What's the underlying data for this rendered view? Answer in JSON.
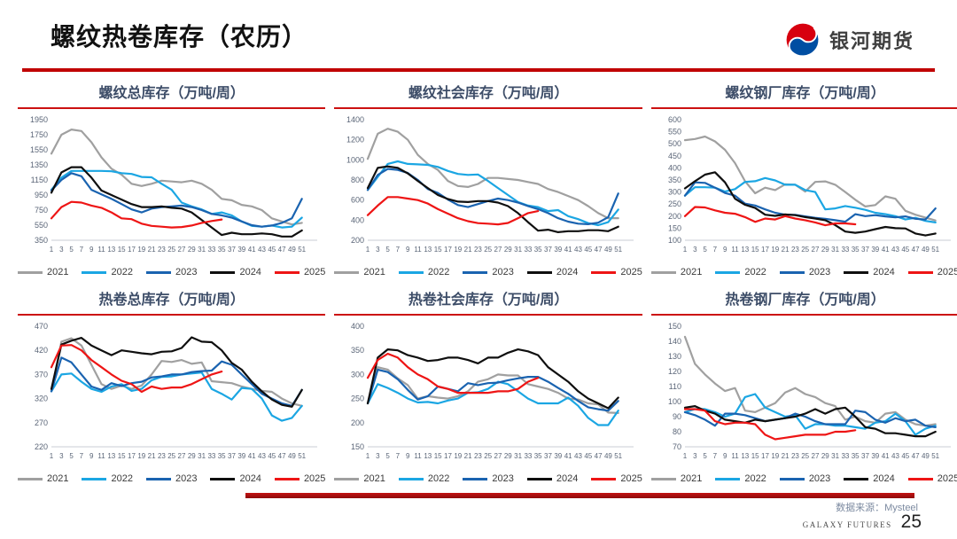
{
  "header": {
    "title": "螺纹热卷库存（农历）",
    "logo_text": "银河期货"
  },
  "footer": {
    "source": "数据来源：Mysteel",
    "brand": "GALAXY FUTURES",
    "page_number": "25"
  },
  "colors": {
    "2021": "#a0a0a0",
    "2022": "#1ba6e3",
    "2023": "#1a63b0",
    "2024": "#0f0f0f",
    "2025": "#ee1515",
    "accent_red": "#c00000",
    "title_text": "#3d4d68",
    "tick_text": "#5a6577",
    "axis_line": "#c9cdd4"
  },
  "legend_years": [
    "2021",
    "2022",
    "2023",
    "2024",
    "2025"
  ],
  "chart_data": [
    {
      "type": "line",
      "title": "螺纹总库存（万吨/周）",
      "x": [
        1,
        3,
        5,
        7,
        9,
        11,
        13,
        15,
        17,
        19,
        21,
        23,
        25,
        27,
        29,
        31,
        33,
        35,
        37,
        39,
        41,
        43,
        45,
        47,
        49,
        51
      ],
      "ylim": [
        350,
        1950
      ],
      "y_ticks": [
        350,
        550,
        750,
        950,
        1150,
        1350,
        1550,
        1750,
        1950
      ],
      "legend_position": "bottom",
      "series": [
        {
          "name": "2021",
          "values": [
            1500,
            1750,
            1820,
            1800,
            1650,
            1450,
            1300,
            1220,
            1100,
            1070,
            1100,
            1140,
            1130,
            1120,
            1140,
            1100,
            1020,
            900,
            880,
            820,
            800,
            750,
            640,
            600,
            560,
            580
          ]
        },
        {
          "name": "2022",
          "values": [
            1020,
            1180,
            1270,
            1270,
            1270,
            1270,
            1265,
            1240,
            1230,
            1190,
            1185,
            1100,
            1020,
            850,
            800,
            760,
            700,
            720,
            680,
            600,
            540,
            530,
            545,
            520,
            530,
            650
          ]
        },
        {
          "name": "2023",
          "values": [
            1010,
            1150,
            1240,
            1200,
            1020,
            960,
            900,
            830,
            760,
            720,
            770,
            790,
            800,
            810,
            790,
            750,
            700,
            680,
            650,
            600,
            550,
            530,
            545,
            580,
            640,
            900
          ]
        },
        {
          "name": "2024",
          "values": [
            980,
            1250,
            1320,
            1320,
            1180,
            1010,
            950,
            890,
            830,
            790,
            790,
            800,
            780,
            770,
            720,
            620,
            520,
            420,
            450,
            430,
            430,
            440,
            430,
            400,
            400,
            480
          ]
        },
        {
          "name": "2025",
          "values": [
            640,
            790,
            860,
            850,
            810,
            780,
            720,
            640,
            630,
            570,
            540,
            530,
            520,
            525,
            545,
            580,
            605,
            625
          ]
        }
      ]
    },
    {
      "type": "line",
      "title": "螺纹社会库存（万吨/周）",
      "x": [
        1,
        3,
        5,
        7,
        9,
        11,
        13,
        15,
        17,
        19,
        21,
        23,
        25,
        27,
        29,
        31,
        33,
        35,
        37,
        39,
        41,
        43,
        45,
        47,
        49,
        51
      ],
      "ylim": [
        200,
        1400
      ],
      "y_ticks": [
        200,
        400,
        600,
        800,
        1000,
        1200,
        1400
      ],
      "legend_position": "bottom",
      "series": [
        {
          "name": "2021",
          "values": [
            1010,
            1260,
            1310,
            1280,
            1200,
            1050,
            960,
            900,
            790,
            740,
            730,
            760,
            820,
            820,
            810,
            800,
            780,
            760,
            710,
            680,
            640,
            600,
            540,
            470,
            420,
            420
          ]
        },
        {
          "name": "2022",
          "values": [
            700,
            830,
            960,
            985,
            960,
            955,
            950,
            930,
            890,
            860,
            850,
            855,
            790,
            720,
            650,
            580,
            545,
            530,
            490,
            500,
            440,
            410,
            370,
            350,
            380,
            505
          ]
        },
        {
          "name": "2023",
          "values": [
            700,
            850,
            910,
            900,
            870,
            800,
            710,
            670,
            605,
            550,
            530,
            560,
            590,
            615,
            600,
            575,
            540,
            510,
            470,
            420,
            385,
            365,
            360,
            375,
            430,
            665
          ]
        },
        {
          "name": "2024",
          "values": [
            720,
            920,
            935,
            920,
            865,
            790,
            720,
            650,
            610,
            585,
            580,
            590,
            590,
            575,
            540,
            470,
            380,
            295,
            305,
            280,
            290,
            290,
            300,
            300,
            290,
            335
          ]
        },
        {
          "name": "2025",
          "values": [
            450,
            545,
            630,
            630,
            615,
            600,
            565,
            510,
            465,
            420,
            390,
            370,
            365,
            358,
            372,
            420,
            470,
            490
          ]
        }
      ]
    },
    {
      "type": "line",
      "title": "螺纹钢厂库存（万吨/周）",
      "x": [
        1,
        3,
        5,
        7,
        9,
        11,
        13,
        15,
        17,
        19,
        21,
        23,
        25,
        27,
        29,
        31,
        33,
        35,
        37,
        39,
        41,
        43,
        45,
        47,
        49,
        51
      ],
      "ylim": [
        100,
        600
      ],
      "y_ticks": [
        100,
        150,
        200,
        250,
        300,
        350,
        400,
        450,
        500,
        550,
        600
      ],
      "legend_position": "bottom",
      "series": [
        {
          "name": "2021",
          "values": [
            515,
            520,
            530,
            510,
            475,
            420,
            345,
            295,
            318,
            308,
            332,
            330,
            302,
            342,
            344,
            330,
            300,
            268,
            240,
            246,
            282,
            272,
            222,
            206,
            194,
            182
          ]
        },
        {
          "name": "2022",
          "values": [
            285,
            320,
            320,
            318,
            302,
            312,
            342,
            345,
            358,
            348,
            330,
            330,
            308,
            300,
            228,
            232,
            242,
            235,
            226,
            214,
            208,
            200,
            186,
            193,
            180,
            174
          ]
        },
        {
          "name": "2023",
          "values": [
            285,
            340,
            338,
            318,
            296,
            285,
            252,
            244,
            228,
            214,
            206,
            205,
            199,
            193,
            189,
            183,
            177,
            208,
            200,
            204,
            199,
            195,
            199,
            189,
            186,
            232
          ]
        },
        {
          "name": "2024",
          "values": [
            315,
            345,
            372,
            382,
            340,
            272,
            247,
            234,
            206,
            201,
            207,
            204,
            196,
            190,
            183,
            163,
            136,
            131,
            136,
            146,
            155,
            150,
            149,
            128,
            120,
            128
          ]
        },
        {
          "name": "2025",
          "values": [
            200,
            238,
            236,
            224,
            214,
            210,
            196,
            176,
            190,
            186,
            200,
            190,
            183,
            174,
            162,
            170,
            170,
            166
          ]
        }
      ]
    },
    {
      "type": "line",
      "title": "热卷总库存（万吨/周）",
      "x": [
        1,
        3,
        5,
        7,
        9,
        11,
        13,
        15,
        17,
        19,
        21,
        23,
        25,
        27,
        29,
        31,
        33,
        35,
        37,
        39,
        41,
        43,
        45,
        47,
        49,
        51
      ],
      "ylim": [
        220,
        470
      ],
      "y_ticks": [
        220,
        270,
        320,
        370,
        420,
        470
      ],
      "legend_position": "bottom",
      "series": [
        {
          "name": "2021",
          "values": [
            335,
            438,
            445,
            430,
            390,
            350,
            340,
            347,
            340,
            347,
            370,
            398,
            396,
            400,
            392,
            395,
            356,
            354,
            352,
            345,
            340,
            336,
            334,
            320,
            310,
            305
          ]
        },
        {
          "name": "2022",
          "values": [
            335,
            370,
            372,
            355,
            340,
            334,
            345,
            350,
            336,
            340,
            358,
            365,
            366,
            370,
            372,
            374,
            340,
            330,
            318,
            342,
            340,
            320,
            285,
            274,
            280,
            305
          ]
        },
        {
          "name": "2023",
          "values": [
            335,
            405,
            395,
            370,
            345,
            338,
            352,
            346,
            352,
            355,
            364,
            366,
            370,
            370,
            375,
            377,
            378,
            397,
            390,
            370,
            350,
            330,
            320,
            310,
            305,
            338
          ]
        },
        {
          "name": "2024",
          "values": [
            340,
            432,
            440,
            446,
            430,
            420,
            410,
            420,
            417,
            414,
            412,
            417,
            418,
            425,
            447,
            438,
            437,
            420,
            394,
            380,
            355,
            335,
            318,
            307,
            303,
            338
          ]
        },
        {
          "name": "2025",
          "values": [
            385,
            430,
            431,
            420,
            400,
            385,
            370,
            357,
            350,
            334,
            345,
            340,
            343,
            343,
            350,
            360,
            370,
            376
          ]
        }
      ]
    },
    {
      "type": "line",
      "title": "热卷社会库存（万吨/周）",
      "x": [
        1,
        3,
        5,
        7,
        9,
        11,
        13,
        15,
        17,
        19,
        21,
        23,
        25,
        27,
        29,
        31,
        33,
        35,
        37,
        39,
        41,
        43,
        45,
        47,
        49,
        51
      ],
      "ylim": [
        150,
        400
      ],
      "y_ticks": [
        150,
        200,
        250,
        300,
        350,
        400
      ],
      "legend_position": "bottom",
      "series": [
        {
          "name": "2021",
          "values": [
            240,
            315,
            310,
            292,
            278,
            250,
            255,
            252,
            250,
            255,
            265,
            285,
            290,
            300,
            298,
            298,
            280,
            275,
            270,
            262,
            250,
            248,
            240,
            238,
            221,
            220
          ]
        },
        {
          "name": "2022",
          "values": [
            240,
            280,
            272,
            262,
            250,
            242,
            243,
            240,
            246,
            250,
            262,
            263,
            270,
            285,
            280,
            265,
            250,
            240,
            240,
            240,
            252,
            235,
            210,
            195,
            195,
            225
          ]
        },
        {
          "name": "2023",
          "values": [
            240,
            310,
            305,
            290,
            268,
            248,
            255,
            275,
            270,
            265,
            282,
            278,
            282,
            283,
            288,
            292,
            295,
            295,
            285,
            272,
            260,
            245,
            232,
            228,
            225,
            245
          ]
        },
        {
          "name": "2024",
          "values": [
            240,
            335,
            352,
            350,
            340,
            335,
            328,
            330,
            335,
            335,
            330,
            323,
            335,
            335,
            345,
            352,
            348,
            340,
            315,
            300,
            285,
            265,
            250,
            240,
            230,
            252
          ]
        },
        {
          "name": "2025",
          "values": [
            293,
            330,
            343,
            335,
            315,
            300,
            290,
            275,
            270,
            262,
            262,
            262,
            262,
            265,
            265,
            270,
            285,
            293
          ]
        }
      ]
    },
    {
      "type": "line",
      "title": "热卷钢厂库存（万吨/周）",
      "x": [
        1,
        3,
        5,
        7,
        9,
        11,
        13,
        15,
        17,
        19,
        21,
        23,
        25,
        27,
        29,
        31,
        33,
        35,
        37,
        39,
        41,
        43,
        45,
        47,
        49,
        51
      ],
      "ylim": [
        70,
        150
      ],
      "y_ticks": [
        70,
        80,
        90,
        100,
        110,
        120,
        130,
        140,
        150
      ],
      "legend_position": "bottom",
      "series": [
        {
          "name": "2021",
          "values": [
            143,
            125,
            118,
            112,
            107,
            109,
            94,
            93,
            96,
            99,
            106,
            109,
            105,
            103,
            99,
            97,
            88,
            90,
            87,
            86,
            92,
            93,
            88,
            85,
            84,
            85
          ]
        },
        {
          "name": "2022",
          "values": [
            93,
            95,
            95,
            93,
            90,
            92,
            103,
            105,
            96,
            93,
            90,
            91,
            82,
            85,
            85,
            84,
            84,
            83,
            82,
            86,
            87,
            92,
            87,
            78,
            82,
            84
          ]
        },
        {
          "name": "2023",
          "values": [
            93,
            91,
            88,
            84,
            92,
            92,
            91,
            89,
            87,
            88,
            89,
            92,
            90,
            87,
            85,
            85,
            85,
            94,
            93,
            88,
            86,
            89,
            87,
            88,
            84,
            83
          ]
        },
        {
          "name": "2024",
          "values": [
            96,
            97,
            94,
            92,
            88,
            87,
            86,
            88,
            87,
            88,
            89,
            90,
            92,
            95,
            92,
            95,
            96,
            90,
            83,
            82,
            79,
            79,
            78,
            77,
            77,
            80
          ]
        },
        {
          "name": "2025",
          "values": [
            95,
            95,
            94,
            87,
            85,
            86,
            86,
            85,
            78,
            75,
            76,
            77,
            78,
            78,
            78,
            80,
            80,
            81
          ]
        }
      ]
    }
  ]
}
